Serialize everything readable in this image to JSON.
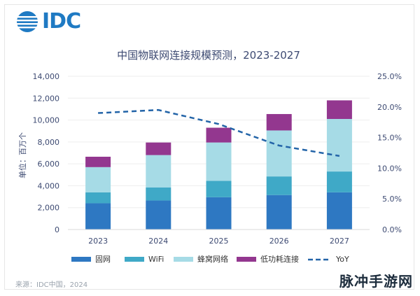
{
  "brand": {
    "name": "IDC"
  },
  "source": "来源：IDC中国，2024",
  "watermark": "脉冲手游网",
  "colors": {
    "brand": "#1f7ac3",
    "fixed": "#2e78c2",
    "wifi": "#3fa9c7",
    "cellular": "#a6dbe6",
    "lowpower": "#93378f",
    "yoy": "#2364a8",
    "axis_text": "#3d4a72",
    "grid": "#eeeeee"
  },
  "chart_data": {
    "type": "bar",
    "stacked": true,
    "title": "中国物联网连接规模预测，2023-2027",
    "ylabel": "单位：百万个",
    "ylim": [
      0,
      14000
    ],
    "y_ticks": [
      "0",
      "2,000",
      "4,000",
      "6,000",
      "8,000",
      "10,000",
      "12,000",
      "14,000"
    ],
    "y2lim": [
      0,
      25
    ],
    "y2_ticks": [
      "0.0%",
      "5.0%",
      "10.0%",
      "15.0%",
      "20.0%",
      "25.0%"
    ],
    "categories": [
      "2023",
      "2024",
      "2025",
      "2026",
      "2027"
    ],
    "series": [
      {
        "name": "固网",
        "color_key": "fixed",
        "values": [
          2400,
          2650,
          2950,
          3150,
          3400
        ]
      },
      {
        "name": "WiFi",
        "color_key": "wifi",
        "values": [
          1000,
          1200,
          1500,
          1700,
          1900
        ]
      },
      {
        "name": "蜂窝网络",
        "color_key": "cellular",
        "values": [
          2300,
          2950,
          3500,
          4200,
          4800
        ]
      },
      {
        "name": "低功耗连接",
        "color_key": "lowpower",
        "values": [
          950,
          1150,
          1350,
          1500,
          1700
        ]
      }
    ],
    "line_series": {
      "name": "YoY",
      "axis": "right",
      "style": "dashed",
      "color_key": "yoy",
      "values": [
        19.0,
        19.5,
        17.2,
        13.7,
        12.0
      ]
    },
    "legend_position": "bottom",
    "grid": true
  }
}
